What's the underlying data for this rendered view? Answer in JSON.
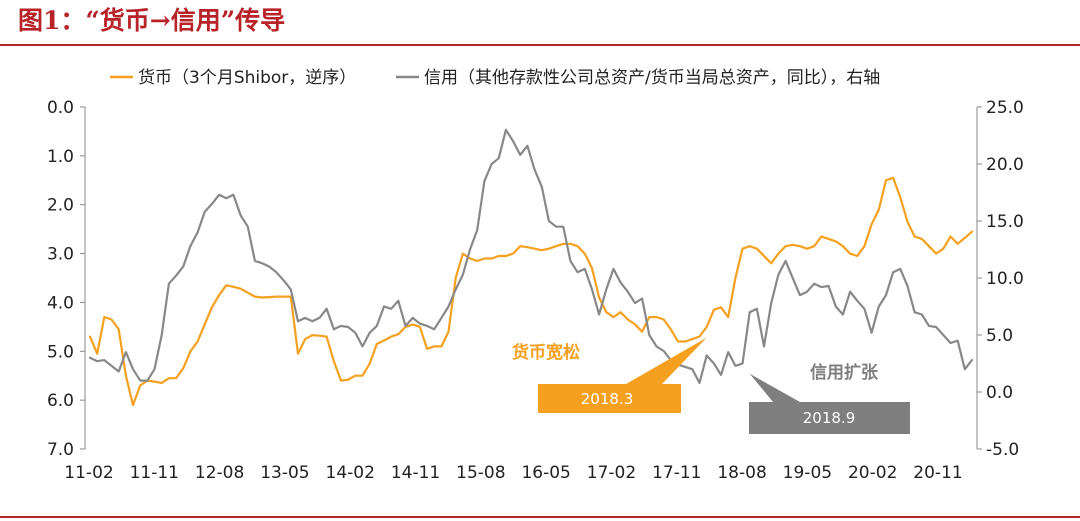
{
  "figure": {
    "title": "图1：“货币→信用”传导",
    "colors": {
      "title": "#b8232a",
      "rule": "#b8232a"
    }
  },
  "chart_data": {
    "type": "line",
    "legend": {
      "placement": "top",
      "items": [
        "货币（3个月Shibor，逆序）",
        "信用（其他存款性公司总资产/货币当局总资产，同比），右轴"
      ]
    },
    "x_tick_labels": [
      "11-02",
      "11-11",
      "12-08",
      "13-05",
      "14-02",
      "14-11",
      "15-08",
      "16-05",
      "17-02",
      "17-11",
      "18-08",
      "19-05",
      "20-02",
      "20-11"
    ],
    "x_start": "2011-01",
    "x_end": "2021-04",
    "y_left": {
      "reversed": true,
      "range": [
        0.0,
        7.0
      ],
      "ticks": [
        "0.0",
        "1.0",
        "2.0",
        "3.0",
        "4.0",
        "5.0",
        "6.0",
        "7.0"
      ]
    },
    "y_right": {
      "range": [
        -5.0,
        25.0
      ],
      "ticks": [
        "25.0",
        "20.0",
        "15.0",
        "10.0",
        "5.0",
        "0.0",
        "-5.0"
      ]
    },
    "grid": false,
    "series": [
      {
        "name": "货币（3个月Shibor，逆序）",
        "axis": "left",
        "color": "#f5a01e",
        "points": [
          [
            "2011-01",
            4.7
          ],
          [
            "2011-02",
            5.05
          ],
          [
            "2011-03",
            4.3
          ],
          [
            "2011-04",
            4.35
          ],
          [
            "2011-05",
            4.55
          ],
          [
            "2011-06",
            5.5
          ],
          [
            "2011-07",
            6.1
          ],
          [
            "2011-08",
            5.7
          ],
          [
            "2011-09",
            5.6
          ],
          [
            "2011-10",
            5.62
          ],
          [
            "2011-11",
            5.65
          ],
          [
            "2011-12",
            5.55
          ],
          [
            "2012-01",
            5.55
          ],
          [
            "2012-02",
            5.35
          ],
          [
            "2012-03",
            5.0
          ],
          [
            "2012-04",
            4.8
          ],
          [
            "2012-05",
            4.45
          ],
          [
            "2012-06",
            4.1
          ],
          [
            "2012-07",
            3.85
          ],
          [
            "2012-08",
            3.65
          ],
          [
            "2012-09",
            3.68
          ],
          [
            "2012-10",
            3.72
          ],
          [
            "2012-11",
            3.8
          ],
          [
            "2012-12",
            3.88
          ],
          [
            "2013-01",
            3.9
          ],
          [
            "2013-02",
            3.89
          ],
          [
            "2013-03",
            3.88
          ],
          [
            "2013-04",
            3.88
          ],
          [
            "2013-05",
            3.88
          ],
          [
            "2013-06",
            5.05
          ],
          [
            "2013-07",
            4.75
          ],
          [
            "2013-08",
            4.67
          ],
          [
            "2013-09",
            4.68
          ],
          [
            "2013-10",
            4.7
          ],
          [
            "2013-11",
            5.2
          ],
          [
            "2013-12",
            5.6
          ],
          [
            "2014-01",
            5.58
          ],
          [
            "2014-02",
            5.5
          ],
          [
            "2014-03",
            5.5
          ],
          [
            "2014-04",
            5.25
          ],
          [
            "2014-05",
            4.85
          ],
          [
            "2014-06",
            4.78
          ],
          [
            "2014-07",
            4.7
          ],
          [
            "2014-08",
            4.65
          ],
          [
            "2014-09",
            4.5
          ],
          [
            "2014-10",
            4.45
          ],
          [
            "2014-11",
            4.5
          ],
          [
            "2014-12",
            4.95
          ],
          [
            "2015-01",
            4.9
          ],
          [
            "2015-02",
            4.9
          ],
          [
            "2015-03",
            4.6
          ],
          [
            "2015-04",
            3.5
          ],
          [
            "2015-05",
            3.0
          ],
          [
            "2015-06",
            3.1
          ],
          [
            "2015-07",
            3.15
          ],
          [
            "2015-08",
            3.1
          ],
          [
            "2015-09",
            3.1
          ],
          [
            "2015-10",
            3.05
          ],
          [
            "2015-11",
            3.05
          ],
          [
            "2015-12",
            3.0
          ],
          [
            "2016-01",
            2.85
          ],
          [
            "2016-02",
            2.87
          ],
          [
            "2016-03",
            2.9
          ],
          [
            "2016-04",
            2.93
          ],
          [
            "2016-05",
            2.9
          ],
          [
            "2016-06",
            2.85
          ],
          [
            "2016-07",
            2.8
          ],
          [
            "2016-08",
            2.8
          ],
          [
            "2016-09",
            2.85
          ],
          [
            "2016-10",
            3.0
          ],
          [
            "2016-11",
            3.3
          ],
          [
            "2016-12",
            3.9
          ],
          [
            "2017-01",
            4.2
          ],
          [
            "2017-02",
            4.3
          ],
          [
            "2017-03",
            4.2
          ],
          [
            "2017-04",
            4.35
          ],
          [
            "2017-05",
            4.45
          ],
          [
            "2017-06",
            4.6
          ],
          [
            "2017-07",
            4.3
          ],
          [
            "2017-08",
            4.3
          ],
          [
            "2017-09",
            4.35
          ],
          [
            "2017-10",
            4.55
          ],
          [
            "2017-11",
            4.8
          ],
          [
            "2017-12",
            4.8
          ],
          [
            "2018-01",
            4.75
          ],
          [
            "2018-02",
            4.7
          ],
          [
            "2018-03",
            4.5
          ],
          [
            "2018-04",
            4.15
          ],
          [
            "2018-05",
            4.1
          ],
          [
            "2018-06",
            4.3
          ],
          [
            "2018-07",
            3.5
          ],
          [
            "2018-08",
            2.9
          ],
          [
            "2018-09",
            2.85
          ],
          [
            "2018-10",
            2.9
          ],
          [
            "2018-11",
            3.05
          ],
          [
            "2018-12",
            3.2
          ],
          [
            "2019-01",
            3.0
          ],
          [
            "2019-02",
            2.85
          ],
          [
            "2019-03",
            2.82
          ],
          [
            "2019-04",
            2.85
          ],
          [
            "2019-05",
            2.9
          ],
          [
            "2019-06",
            2.85
          ],
          [
            "2019-07",
            2.65
          ],
          [
            "2019-08",
            2.7
          ],
          [
            "2019-09",
            2.75
          ],
          [
            "2019-10",
            2.85
          ],
          [
            "2019-11",
            3.0
          ],
          [
            "2019-12",
            3.05
          ],
          [
            "2020-01",
            2.85
          ],
          [
            "2020-02",
            2.4
          ],
          [
            "2020-03",
            2.1
          ],
          [
            "2020-04",
            1.5
          ],
          [
            "2020-05",
            1.45
          ],
          [
            "2020-06",
            1.85
          ],
          [
            "2020-07",
            2.35
          ],
          [
            "2020-08",
            2.65
          ],
          [
            "2020-09",
            2.7
          ],
          [
            "2020-10",
            2.85
          ],
          [
            "2020-11",
            3.0
          ],
          [
            "2020-12",
            2.9
          ],
          [
            "2021-01",
            2.65
          ],
          [
            "2021-02",
            2.8
          ],
          [
            "2021-03",
            2.68
          ],
          [
            "2021-04",
            2.55
          ]
        ]
      },
      {
        "name": "信用（其他存款性公司总资产/货币当局总资产，同比），右轴",
        "axis": "right",
        "color": "#888888",
        "points": [
          [
            "2011-01",
            3.0
          ],
          [
            "2011-02",
            2.7
          ],
          [
            "2011-03",
            2.8
          ],
          [
            "2011-04",
            2.3
          ],
          [
            "2011-05",
            1.8
          ],
          [
            "2011-06",
            3.5
          ],
          [
            "2011-07",
            2.0
          ],
          [
            "2011-08",
            1.0
          ],
          [
            "2011-09",
            1.0
          ],
          [
            "2011-10",
            2.0
          ],
          [
            "2011-11",
            5.0
          ],
          [
            "2011-12",
            9.5
          ],
          [
            "2012-01",
            10.2
          ],
          [
            "2012-02",
            11.0
          ],
          [
            "2012-03",
            12.8
          ],
          [
            "2012-04",
            14.0
          ],
          [
            "2012-05",
            15.8
          ],
          [
            "2012-06",
            16.5
          ],
          [
            "2012-07",
            17.3
          ],
          [
            "2012-08",
            17.0
          ],
          [
            "2012-09",
            17.3
          ],
          [
            "2012-10",
            15.5
          ],
          [
            "2012-11",
            14.5
          ],
          [
            "2012-12",
            11.5
          ],
          [
            "2013-01",
            11.3
          ],
          [
            "2013-02",
            11.0
          ],
          [
            "2013-03",
            10.5
          ],
          [
            "2013-04",
            9.8
          ],
          [
            "2013-05",
            9.0
          ],
          [
            "2013-06",
            6.2
          ],
          [
            "2013-07",
            6.5
          ],
          [
            "2013-08",
            6.2
          ],
          [
            "2013-09",
            6.5
          ],
          [
            "2013-10",
            7.3
          ],
          [
            "2013-11",
            5.5
          ],
          [
            "2013-12",
            5.8
          ],
          [
            "2014-01",
            5.7
          ],
          [
            "2014-02",
            5.2
          ],
          [
            "2014-03",
            4.0
          ],
          [
            "2014-04",
            5.2
          ],
          [
            "2014-05",
            5.8
          ],
          [
            "2014-06",
            7.5
          ],
          [
            "2014-07",
            7.3
          ],
          [
            "2014-08",
            8.0
          ],
          [
            "2014-09",
            5.8
          ],
          [
            "2014-10",
            6.5
          ],
          [
            "2014-11",
            6.0
          ],
          [
            "2014-12",
            5.8
          ],
          [
            "2015-01",
            5.5
          ],
          [
            "2015-02",
            6.5
          ],
          [
            "2015-03",
            7.5
          ],
          [
            "2015-04",
            9.0
          ],
          [
            "2015-05",
            10.3
          ],
          [
            "2015-06",
            12.5
          ],
          [
            "2015-07",
            14.2
          ],
          [
            "2015-08",
            18.5
          ],
          [
            "2015-09",
            20.0
          ],
          [
            "2015-10",
            20.5
          ],
          [
            "2015-11",
            23.0
          ],
          [
            "2015-12",
            22.0
          ],
          [
            "2016-01",
            20.8
          ],
          [
            "2016-02",
            21.6
          ],
          [
            "2016-03",
            19.5
          ],
          [
            "2016-04",
            18.0
          ],
          [
            "2016-05",
            15.0
          ],
          [
            "2016-06",
            14.5
          ],
          [
            "2016-07",
            14.5
          ],
          [
            "2016-08",
            11.5
          ],
          [
            "2016-09",
            10.5
          ],
          [
            "2016-10",
            10.8
          ],
          [
            "2016-11",
            9.0
          ],
          [
            "2016-12",
            6.8
          ],
          [
            "2017-01",
            9.0
          ],
          [
            "2017-02",
            10.8
          ],
          [
            "2017-03",
            9.6
          ],
          [
            "2017-04",
            8.8
          ],
          [
            "2017-05",
            7.8
          ],
          [
            "2017-06",
            8.2
          ],
          [
            "2017-07",
            5.0
          ],
          [
            "2017-08",
            4.0
          ],
          [
            "2017-09",
            3.6
          ],
          [
            "2017-10",
            2.8
          ],
          [
            "2017-11",
            2.4
          ],
          [
            "2017-12",
            2.2
          ],
          [
            "2018-01",
            2.0
          ],
          [
            "2018-02",
            0.8
          ],
          [
            "2018-03",
            3.2
          ],
          [
            "2018-04",
            2.5
          ],
          [
            "2018-05",
            1.5
          ],
          [
            "2018-06",
            3.5
          ],
          [
            "2018-07",
            2.3
          ],
          [
            "2018-08",
            2.5
          ],
          [
            "2018-09",
            7.0
          ],
          [
            "2018-10",
            7.3
          ],
          [
            "2018-11",
            4.0
          ],
          [
            "2018-12",
            7.8
          ],
          [
            "2019-01",
            10.3
          ],
          [
            "2019-02",
            11.5
          ],
          [
            "2019-03",
            10.0
          ],
          [
            "2019-04",
            8.5
          ],
          [
            "2019-05",
            8.8
          ],
          [
            "2019-06",
            9.5
          ],
          [
            "2019-07",
            9.2
          ],
          [
            "2019-08",
            9.3
          ],
          [
            "2019-09",
            7.5
          ],
          [
            "2019-10",
            6.8
          ],
          [
            "2019-11",
            8.8
          ],
          [
            "2019-12",
            8.0
          ],
          [
            "2020-01",
            7.3
          ],
          [
            "2020-02",
            5.2
          ],
          [
            "2020-03",
            7.5
          ],
          [
            "2020-04",
            8.5
          ],
          [
            "2020-05",
            10.5
          ],
          [
            "2020-06",
            10.8
          ],
          [
            "2020-07",
            9.3
          ],
          [
            "2020-08",
            7.0
          ],
          [
            "2020-09",
            6.8
          ],
          [
            "2020-10",
            5.8
          ],
          [
            "2020-11",
            5.7
          ],
          [
            "2020-12",
            5.0
          ],
          [
            "2021-01",
            4.3
          ],
          [
            "2021-02",
            4.5
          ],
          [
            "2021-03",
            2.0
          ],
          [
            "2021-04",
            2.8
          ]
        ]
      }
    ],
    "annotations": [
      {
        "text": "货币宽松",
        "color": "#f5a01e",
        "box_label": "2018.3",
        "box_color": "#f5a01e",
        "pointer_date": "2018-03",
        "pointer_axis": "left",
        "pointer_value": 4.72
      },
      {
        "text": "信用扩张",
        "color": "#7f7f7f",
        "box_label": "2018.9",
        "box_color": "#7f7f7f",
        "pointer_date": "2018-09",
        "pointer_axis": "right",
        "pointer_value": 1.6
      }
    ]
  }
}
